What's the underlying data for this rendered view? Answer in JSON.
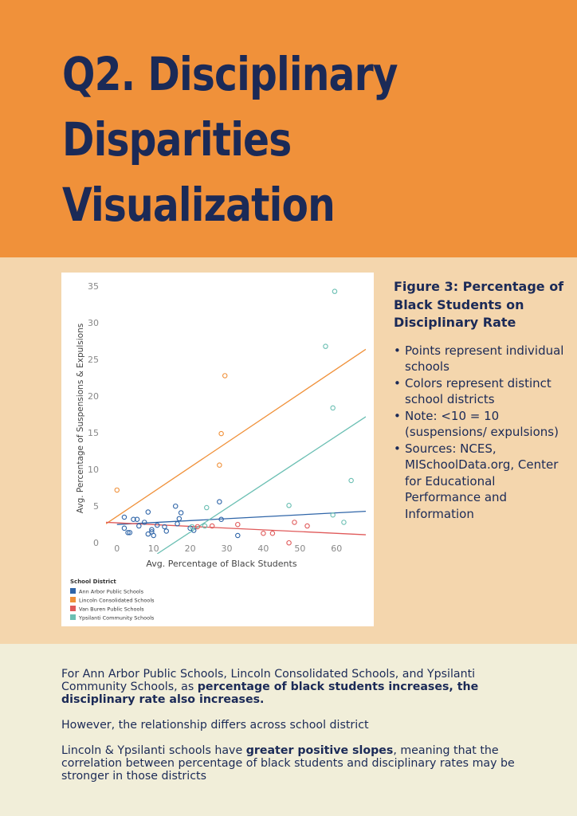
{
  "header": {
    "title_lines": [
      "Q2. Disciplinary",
      "Disparities",
      "Visualization"
    ]
  },
  "colors": {
    "header_bg": "#f0913a",
    "title": "#1b2a57",
    "mid_bg": "#f4d6ad",
    "bottom_bg": "#f1eed9"
  },
  "figure": {
    "title": "Figure 3: Percentage of Black Students on Disciplinary Rate",
    "bullets": [
      "Points represent individual schools",
      "Colors represent distinct school districts",
      "Note: <10 = 10 (suspensions/ expulsions)",
      "Sources: NCES, MISchoolData.org, Center for Educational Performance and Information"
    ]
  },
  "body_text": {
    "p1_a": "For Ann Arbor Public Schools, Lincoln Consolidated Schools, and Ypsilanti Community Schools,  as ",
    "p1_b": "percentage of black students increases, the disciplinary rate also increases.",
    "p2": "However, the relationship differs across school district",
    "p3_a": "Lincoln & Ypsilanti schools have ",
    "p3_b": "greater positive slopes",
    "p3_c": ", meaning that the correlation between percentage of black students and disciplinary rates may be stronger in those districts"
  },
  "chart_data": {
    "type": "scatter",
    "title": "",
    "xlabel": "Avg.  Percentage of Black Students",
    "ylabel": "Avg. Percentage of Suspensions & Expulsions",
    "xlim": [
      -3,
      68
    ],
    "ylim": [
      -1.5,
      36
    ],
    "xticks": [
      0,
      10,
      20,
      30,
      40,
      50,
      60
    ],
    "yticks": [
      0,
      5,
      10,
      15,
      20,
      25,
      30,
      35
    ],
    "grid": false,
    "legend_title": "School District",
    "legend_position": "bottom-left",
    "series": [
      {
        "name": "Ann Arbor Public Schools",
        "color": "#2f65a8",
        "points": [
          [
            2,
            3.5
          ],
          [
            2,
            2
          ],
          [
            3,
            1.4
          ],
          [
            3.5,
            1.4
          ],
          [
            4.5,
            3.2
          ],
          [
            5.5,
            3.2
          ],
          [
            6,
            2.3
          ],
          [
            7.5,
            2.8
          ],
          [
            8.5,
            4.2
          ],
          [
            8.5,
            1.2
          ],
          [
            9.5,
            1.8
          ],
          [
            9.5,
            1.5
          ],
          [
            10,
            1
          ],
          [
            11,
            2.4
          ],
          [
            13,
            2.2
          ],
          [
            13.5,
            1.6
          ],
          [
            16,
            5
          ],
          [
            16.5,
            2.6
          ],
          [
            17,
            3.3
          ],
          [
            17.5,
            4.1
          ],
          [
            20,
            2
          ],
          [
            21,
            1.7
          ],
          [
            28,
            5.6
          ],
          [
            28.5,
            3.2
          ],
          [
            33,
            1
          ]
        ],
        "trend": [
          [
            0,
            2.5
          ],
          [
            68,
            4.3
          ]
        ]
      },
      {
        "name": "Lincoln Consolidated Schools",
        "color": "#f0913a",
        "points": [
          [
            0,
            7.2
          ],
          [
            28,
            10.6
          ],
          [
            28.5,
            14.9
          ],
          [
            29.5,
            22.8
          ]
        ],
        "trend": [
          [
            -3,
            2.6
          ],
          [
            68,
            26.4
          ]
        ]
      },
      {
        "name": "Van Buren Public Schools",
        "color": "#e05a5a",
        "points": [
          [
            22,
            2.2
          ],
          [
            26,
            2.3
          ],
          [
            33,
            2.5
          ],
          [
            40,
            1.3
          ],
          [
            42.5,
            1.3
          ],
          [
            47,
            0
          ],
          [
            48.5,
            2.8
          ],
          [
            52,
            2.3
          ]
        ],
        "trend": [
          [
            -3,
            2.8
          ],
          [
            68,
            1.1
          ]
        ]
      },
      {
        "name": "Ypsilanti Community Schools",
        "color": "#6bbfb3",
        "points": [
          [
            20.5,
            2.2
          ],
          [
            24,
            2.3
          ],
          [
            24.5,
            4.8
          ],
          [
            47,
            5.1
          ],
          [
            57,
            26.8
          ],
          [
            59,
            18.4
          ],
          [
            59,
            3.8
          ],
          [
            59.5,
            34.3
          ],
          [
            62,
            2.8
          ],
          [
            64,
            8.5
          ]
        ],
        "trend": [
          [
            11,
            -1.5
          ],
          [
            68,
            17.2
          ]
        ]
      }
    ]
  }
}
